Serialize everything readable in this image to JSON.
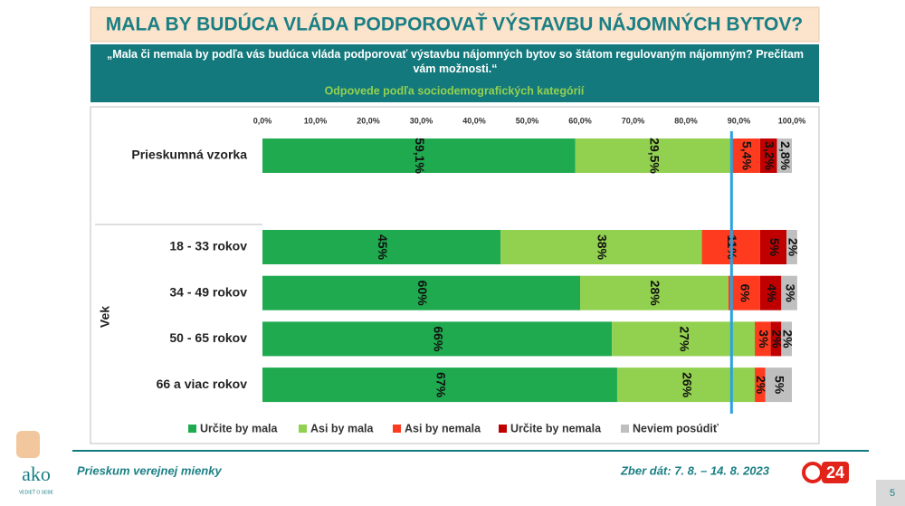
{
  "slide": {
    "title": "MALA BY BUDÚCA VLÁDA PODPOROVAŤ VÝSTAVBU NÁJOMNÝCH BYTOV?",
    "question": "„Mala či nemala by podľa vás budúca vláda podporovať výstavbu nájomných bytov so štátom regulovaným nájomným? Prečítam vám možnosti.“",
    "subtitle": "Odpovede podľa sociodemografických kategórií",
    "footer_left": "Prieskum verejnej mienky",
    "footer_right": "Zber dát: 7. 8. – 14. 8. 2023",
    "logo_text": "ako",
    "logo_tagline": "VEDIEŤ O SEBE",
    "channel": "24",
    "page_number": "5"
  },
  "chart_data": {
    "type": "stacked-hbar",
    "categories": [
      "Prieskumná vzorka",
      "18 - 33 rokov",
      "34 - 49 rokov",
      "50 - 65 rokov",
      "66 a viac rokov"
    ],
    "group_label": "Vek",
    "xlim": [
      0,
      100
    ],
    "xticks": [
      {
        "value": 0,
        "label": "0,0%"
      },
      {
        "value": 10,
        "label": "10,0%"
      },
      {
        "value": 20,
        "label": "20,0%"
      },
      {
        "value": 30,
        "label": "30,0%"
      },
      {
        "value": 40,
        "label": "40,0%"
      },
      {
        "value": 50,
        "label": "50,0%"
      },
      {
        "value": 60,
        "label": "60,0%"
      },
      {
        "value": 70,
        "label": "70,0%"
      },
      {
        "value": 80,
        "label": "80,0%"
      },
      {
        "value": 90,
        "label": "90,0%"
      },
      {
        "value": 100,
        "label": "100,0%"
      }
    ],
    "reference_value": 88.6,
    "reference_color": "#29a3e0",
    "series": [
      {
        "name": "Určite by mala",
        "color": "#1faa4f",
        "values": [
          59.1,
          45,
          60,
          66,
          67
        ],
        "value_labels": [
          "59,1%",
          "45%",
          "60%",
          "66%",
          "67%"
        ]
      },
      {
        "name": "Asi by mala",
        "color": "#92d050",
        "values": [
          29.5,
          38,
          28,
          27,
          26
        ],
        "value_labels": [
          "29,5%",
          "38%",
          "28%",
          "27%",
          "26%"
        ]
      },
      {
        "name": "Asi by nemala",
        "color": "#ff3b1f",
        "values": [
          5.4,
          11,
          6,
          3,
          2
        ],
        "value_labels": [
          "5,4%",
          "11%",
          "6%",
          "3%",
          "2%"
        ]
      },
      {
        "name": "Určite by nemala",
        "color": "#c00000",
        "values": [
          3.2,
          5,
          4,
          2,
          null
        ],
        "value_labels": [
          "3,2%",
          "5%",
          "4%",
          "2%",
          null
        ]
      },
      {
        "name": "Neviem posúdiť",
        "color": "#bfbfbf",
        "values": [
          2.8,
          2,
          3,
          2,
          5
        ],
        "value_labels": [
          "2,8%",
          "2%",
          "3%",
          "2%",
          "5%"
        ]
      }
    ]
  }
}
